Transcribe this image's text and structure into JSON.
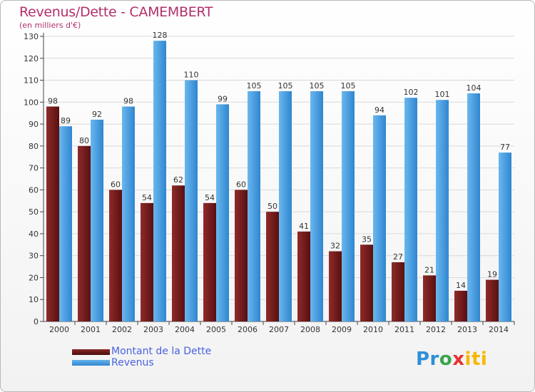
{
  "title": "Revenus/Dette - CAMEMBERT",
  "subtitle": "(en milliers d'€)",
  "logo": {
    "p": "Pr",
    "o": "o",
    "x": "x",
    "i": "iti"
  },
  "legend": {
    "dette_label": "Montant de la Dette",
    "revenus_label": "Revenus"
  },
  "colors": {
    "dette": "#6e1a1a",
    "revenus": "#4aa3e6",
    "axis_text": "#333333",
    "grid": "#d9d9d9",
    "title": "#b1306a",
    "legend_text": "#4a62e0"
  },
  "chart_data": {
    "type": "bar",
    "title": "Revenus/Dette - CAMEMBERT",
    "subtitle": "(en milliers d'€)",
    "categories": [
      "2000",
      "2001",
      "2002",
      "2003",
      "2004",
      "2005",
      "2006",
      "2007",
      "2008",
      "2009",
      "2010",
      "2011",
      "2012",
      "2013",
      "2014"
    ],
    "series": [
      {
        "name": "Montant de la Dette",
        "values": [
          98,
          80,
          60,
          54,
          62,
          54,
          60,
          50,
          41,
          32,
          35,
          27,
          21,
          14,
          19
        ]
      },
      {
        "name": "Revenus",
        "values": [
          89,
          92,
          98,
          128,
          110,
          99,
          105,
          105,
          105,
          105,
          94,
          102,
          101,
          104,
          77
        ]
      }
    ],
    "ylim": [
      0,
      130
    ],
    "yticks": [
      0,
      10,
      20,
      30,
      40,
      50,
      60,
      70,
      80,
      90,
      100,
      110,
      120,
      130
    ],
    "grid": true,
    "legend_position": "bottom-left",
    "data_labels": true
  }
}
